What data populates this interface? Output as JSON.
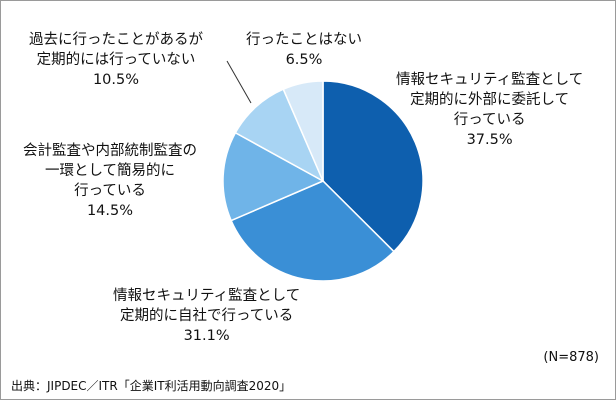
{
  "chart_data": {
    "type": "pie",
    "start": "12 o'clock",
    "direction": "clockwise",
    "slices": [
      {
        "label": "情報セキュリティ監査として\n定期的に外部に委託して\n行っている",
        "value": 37.5,
        "value_text": "37.5%",
        "color": "#0e5fae"
      },
      {
        "label": "情報セキュリティ監査として\n定期的に自社で行っている",
        "value": 31.1,
        "value_text": "31.1%",
        "color": "#3a8fd6"
      },
      {
        "label": "会計監査や内部統制監査の\n一環として簡易的に\n行っている",
        "value": 14.5,
        "value_text": "14.5%",
        "color": "#6fb4e8"
      },
      {
        "label": "過去に行ったことがあるが\n定期的には行っていない",
        "value": 10.5,
        "value_text": "10.5%",
        "color": "#a8d4f3"
      },
      {
        "label": "行ったことはない",
        "value": 6.5,
        "value_text": "6.5%",
        "color": "#d7e9f8"
      }
    ]
  },
  "note": "(N=878)",
  "source": "出典：JIPDEC／ITR「企業IT利活用動向調査2020」"
}
